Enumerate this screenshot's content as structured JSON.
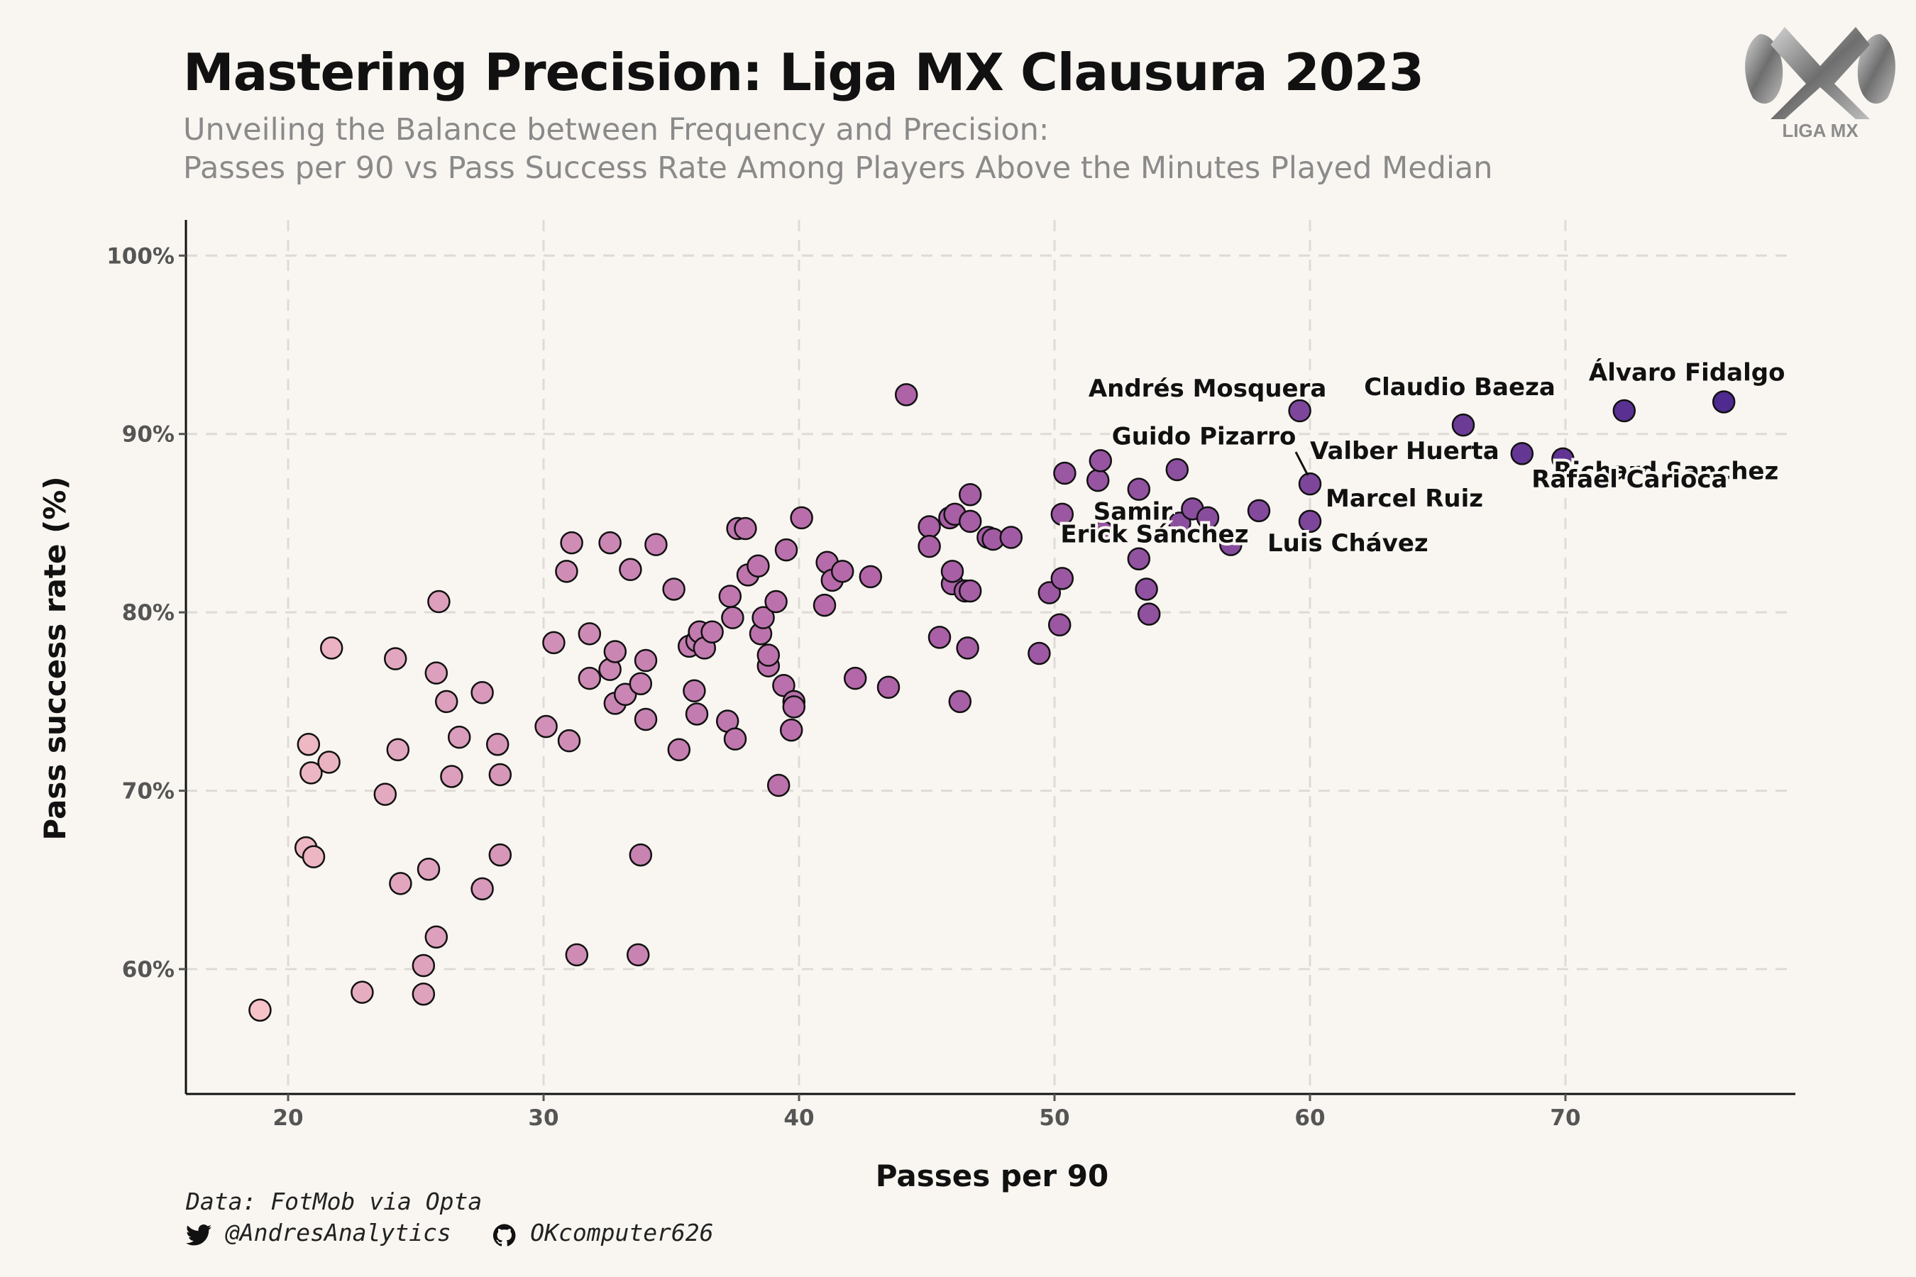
{
  "header": {
    "title": "Mastering Precision: Liga MX Clausura 2023",
    "subtitle_line1": "Unveiling the Balance between Frequency and Precision:",
    "subtitle_line2": "Passes per 90 vs Pass Success Rate Among Players Above the Minutes Played Median",
    "logo_text": "LIGA MX"
  },
  "footer": {
    "source": "Data: FotMob via Opta",
    "twitter_handle": "@AndresAnalytics",
    "github_handle": "OKcomputer626",
    "twitter_icon": "twitter-icon",
    "github_icon": "github-icon"
  },
  "colors": {
    "background": "#f9f6f1",
    "low": "#f6c3c8",
    "mid": "#b265a8",
    "high": "#4f2a8f",
    "point_stroke": "#111111",
    "grid": "#dedad5"
  },
  "chart_data": {
    "type": "scatter",
    "xlabel": "Passes per 90",
    "ylabel": "Pass success rate (%)",
    "xlim": [
      16,
      79
    ],
    "ylim": [
      53,
      102
    ],
    "x_ticks": [
      20,
      30,
      40,
      50,
      60,
      70
    ],
    "y_ticks": [
      60,
      70,
      80,
      90,
      100
    ],
    "y_tick_suffix": "%",
    "grid": "dashed",
    "color_encoding": "points colored by passes per 90 (light pink to dark purple)",
    "points": [
      [
        18.9,
        57.7
      ],
      [
        22.9,
        58.7
      ],
      [
        25.3,
        58.6
      ],
      [
        25.3,
        60.2
      ],
      [
        25.8,
        61.8
      ],
      [
        20.7,
        66.8
      ],
      [
        21.0,
        66.3
      ],
      [
        24.4,
        64.8
      ],
      [
        25.5,
        65.6
      ],
      [
        27.6,
        64.5
      ],
      [
        28.3,
        66.4
      ],
      [
        23.8,
        69.8
      ],
      [
        20.9,
        71.0
      ],
      [
        21.6,
        71.6
      ],
      [
        20.8,
        72.6
      ],
      [
        24.3,
        72.3
      ],
      [
        26.4,
        70.8
      ],
      [
        26.7,
        73.0
      ],
      [
        28.2,
        72.6
      ],
      [
        28.3,
        70.9
      ],
      [
        26.2,
        75.0
      ],
      [
        27.6,
        75.5
      ],
      [
        25.8,
        76.6
      ],
      [
        24.2,
        77.4
      ],
      [
        21.7,
        78.0
      ],
      [
        25.9,
        80.6
      ],
      [
        30.1,
        73.6
      ],
      [
        31.0,
        72.8
      ],
      [
        30.4,
        78.3
      ],
      [
        31.8,
        78.8
      ],
      [
        31.8,
        76.3
      ],
      [
        32.6,
        76.8
      ],
      [
        32.8,
        77.8
      ],
      [
        32.8,
        74.9
      ],
      [
        33.2,
        75.4
      ],
      [
        33.8,
        76.0
      ],
      [
        34.0,
        77.3
      ],
      [
        34.0,
        74.0
      ],
      [
        30.9,
        82.3
      ],
      [
        31.1,
        83.9
      ],
      [
        32.6,
        83.9
      ],
      [
        33.4,
        82.4
      ],
      [
        34.4,
        83.8
      ],
      [
        31.3,
        60.8
      ],
      [
        33.7,
        60.8
      ],
      [
        33.8,
        66.4
      ],
      [
        35.1,
        81.3
      ],
      [
        35.3,
        72.3
      ],
      [
        35.7,
        78.1
      ],
      [
        35.9,
        75.6
      ],
      [
        36.0,
        78.4
      ],
      [
        36.0,
        74.3
      ],
      [
        36.1,
        78.9
      ],
      [
        36.3,
        78.0
      ],
      [
        36.6,
        78.9
      ],
      [
        37.2,
        73.9
      ],
      [
        37.3,
        80.9
      ],
      [
        37.4,
        79.7
      ],
      [
        37.5,
        72.9
      ],
      [
        37.6,
        84.7
      ],
      [
        37.9,
        84.7
      ],
      [
        38.0,
        82.1
      ],
      [
        38.4,
        82.6
      ],
      [
        38.5,
        78.8
      ],
      [
        38.6,
        79.7
      ],
      [
        38.8,
        77.0
      ],
      [
        38.8,
        77.6
      ],
      [
        39.1,
        80.6
      ],
      [
        39.2,
        70.3
      ],
      [
        39.4,
        75.9
      ],
      [
        39.5,
        83.5
      ],
      [
        39.7,
        73.4
      ],
      [
        39.8,
        75.0
      ],
      [
        39.8,
        74.7
      ],
      [
        40.1,
        85.3
      ],
      [
        41.0,
        80.4
      ],
      [
        41.1,
        82.8
      ],
      [
        41.3,
        81.8
      ],
      [
        41.7,
        82.3
      ],
      [
        42.2,
        76.3
      ],
      [
        42.8,
        82.0
      ],
      [
        43.5,
        75.8
      ],
      [
        44.2,
        92.2
      ],
      [
        45.1,
        84.8
      ],
      [
        45.1,
        83.7
      ],
      [
        45.5,
        78.6
      ],
      [
        45.9,
        85.3
      ],
      [
        46.0,
        81.6
      ],
      [
        46.0,
        82.3
      ],
      [
        46.1,
        85.5
      ],
      [
        46.3,
        75.0
      ],
      [
        46.5,
        81.2
      ],
      [
        46.6,
        78.0
      ],
      [
        46.7,
        86.6
      ],
      [
        46.7,
        85.1
      ],
      [
        46.7,
        81.2
      ],
      [
        47.4,
        84.2
      ],
      [
        47.6,
        84.1
      ],
      [
        48.3,
        84.2
      ],
      [
        49.4,
        77.7
      ],
      [
        49.8,
        81.1
      ],
      [
        50.2,
        79.3
      ],
      [
        50.3,
        85.5
      ],
      [
        50.3,
        81.9
      ],
      [
        50.4,
        87.8
      ],
      [
        51.7,
        87.4
      ],
      [
        51.8,
        88.5
      ],
      [
        51.9,
        84.5
      ],
      [
        53.3,
        86.9
      ],
      [
        53.3,
        83.0
      ],
      [
        53.6,
        81.3
      ],
      [
        53.7,
        79.9
      ],
      [
        54.8,
        88.0
      ],
      [
        54.9,
        85.0
      ],
      [
        55.4,
        85.8
      ],
      [
        56.0,
        85.3
      ],
      [
        56.9,
        83.8
      ],
      [
        58.0,
        85.7
      ],
      [
        59.6,
        91.3
      ],
      [
        60.0,
        87.2
      ],
      [
        60.0,
        85.1
      ],
      [
        66.0,
        90.5
      ],
      [
        68.3,
        88.9
      ],
      [
        69.9,
        88.6
      ],
      [
        72.3,
        91.3
      ],
      [
        76.2,
        91.8
      ]
    ],
    "annotations": [
      {
        "label": "Álvaro Fidalgo",
        "x": 76.2,
        "y": 91.8
      },
      {
        "label": "Claudio Baeza",
        "x": 66.0,
        "y": 90.5
      },
      {
        "label": "Andrés Mosquera",
        "x": 59.6,
        "y": 91.3
      },
      {
        "label": "Richard Sanchez",
        "x": 68.3,
        "y": 88.9
      },
      {
        "label": "Guido Pizarro",
        "x": 51.8,
        "y": 88.5
      },
      {
        "label": "Valber Huerta",
        "x": 60.0,
        "y": 87.2
      },
      {
        "label": "Rafael Carioca",
        "x": 69.9,
        "y": 88.6
      },
      {
        "label": "Samir",
        "x": 53.3,
        "y": 86.9
      },
      {
        "label": "Marcel Ruiz",
        "x": 60.0,
        "y": 87.2
      },
      {
        "label": "Erick Sánchez",
        "x": 54.9,
        "y": 85.0
      },
      {
        "label": "Luis Chávez",
        "x": 60.0,
        "y": 85.1
      }
    ]
  }
}
